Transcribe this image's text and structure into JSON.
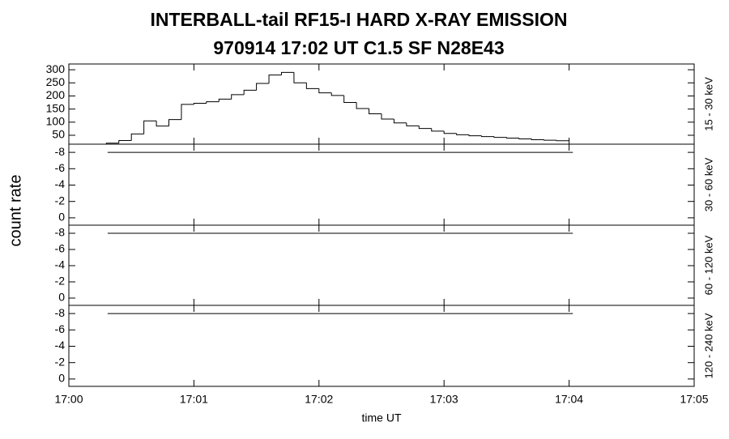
{
  "title": "INTERBALL-tail  RF15-I  HARD  X-RAY  EMISSION",
  "subtitle": "970914     17:02 UT     C1.5   SF   N28E43",
  "ylabel": "count rate",
  "xlabel": "time UT",
  "chart_data": [
    {
      "type": "histogram",
      "ylabel_right": "15 - 30 keV",
      "color": "#000000",
      "bins": [
        0.3,
        0.4,
        0.5,
        0.6,
        0.7,
        0.8,
        0.9,
        1.0,
        1.1,
        1.2,
        1.3,
        1.4,
        1.5,
        1.6,
        1.7,
        1.8,
        1.9,
        2.0,
        2.1,
        2.2,
        2.3,
        2.4,
        2.5,
        2.6,
        2.7,
        2.8,
        2.9,
        3.0,
        3.1,
        3.2,
        3.3,
        3.4,
        3.5,
        3.6,
        3.7,
        3.8,
        3.9,
        4.0
      ],
      "values": [
        20,
        30,
        55,
        105,
        85,
        110,
        168,
        172,
        178,
        188,
        205,
        222,
        248,
        280,
        290,
        250,
        228,
        212,
        202,
        175,
        152,
        132,
        112,
        97,
        86,
        76,
        66,
        57,
        52,
        48,
        45,
        42,
        39,
        36,
        33,
        31,
        29
      ],
      "xlim": [
        0,
        5
      ],
      "ylim": [
        16,
        322
      ],
      "yticks": [
        50,
        100,
        150,
        200,
        250,
        300
      ]
    },
    {
      "type": "line",
      "ylabel_right": "30 - 60 keV",
      "color": "#000000",
      "x": [
        0.31,
        4.03
      ],
      "values": [
        -8,
        -8
      ],
      "xlim": [
        0,
        5
      ],
      "ylim": [
        0.9,
        -9
      ],
      "yticks": [
        -8,
        -6,
        -4,
        -2,
        0
      ]
    },
    {
      "type": "line",
      "ylabel_right": "60 - 120 keV",
      "color": "#000000",
      "x": [
        0.31,
        4.03
      ],
      "values": [
        -8,
        -8
      ],
      "xlim": [
        0,
        5
      ],
      "ylim": [
        0.9,
        -9
      ],
      "yticks": [
        -8,
        -6,
        -4,
        -2,
        0
      ]
    },
    {
      "type": "line",
      "ylabel_right": "120 - 240 keV",
      "color": "#000000",
      "x": [
        0.31,
        4.03
      ],
      "values": [
        -8,
        -8
      ],
      "xlim": [
        0,
        5
      ],
      "ylim": [
        0.9,
        -9
      ],
      "yticks": [
        -8,
        -6,
        -4,
        -2,
        0
      ],
      "xticks": [
        {
          "value": 0,
          "label": "17:00"
        },
        {
          "value": 1,
          "label": "17:01"
        },
        {
          "value": 2,
          "label": "17:02"
        },
        {
          "value": 3,
          "label": "17:03"
        },
        {
          "value": 4,
          "label": "17:04"
        },
        {
          "value": 5,
          "label": "17:05"
        }
      ]
    }
  ]
}
